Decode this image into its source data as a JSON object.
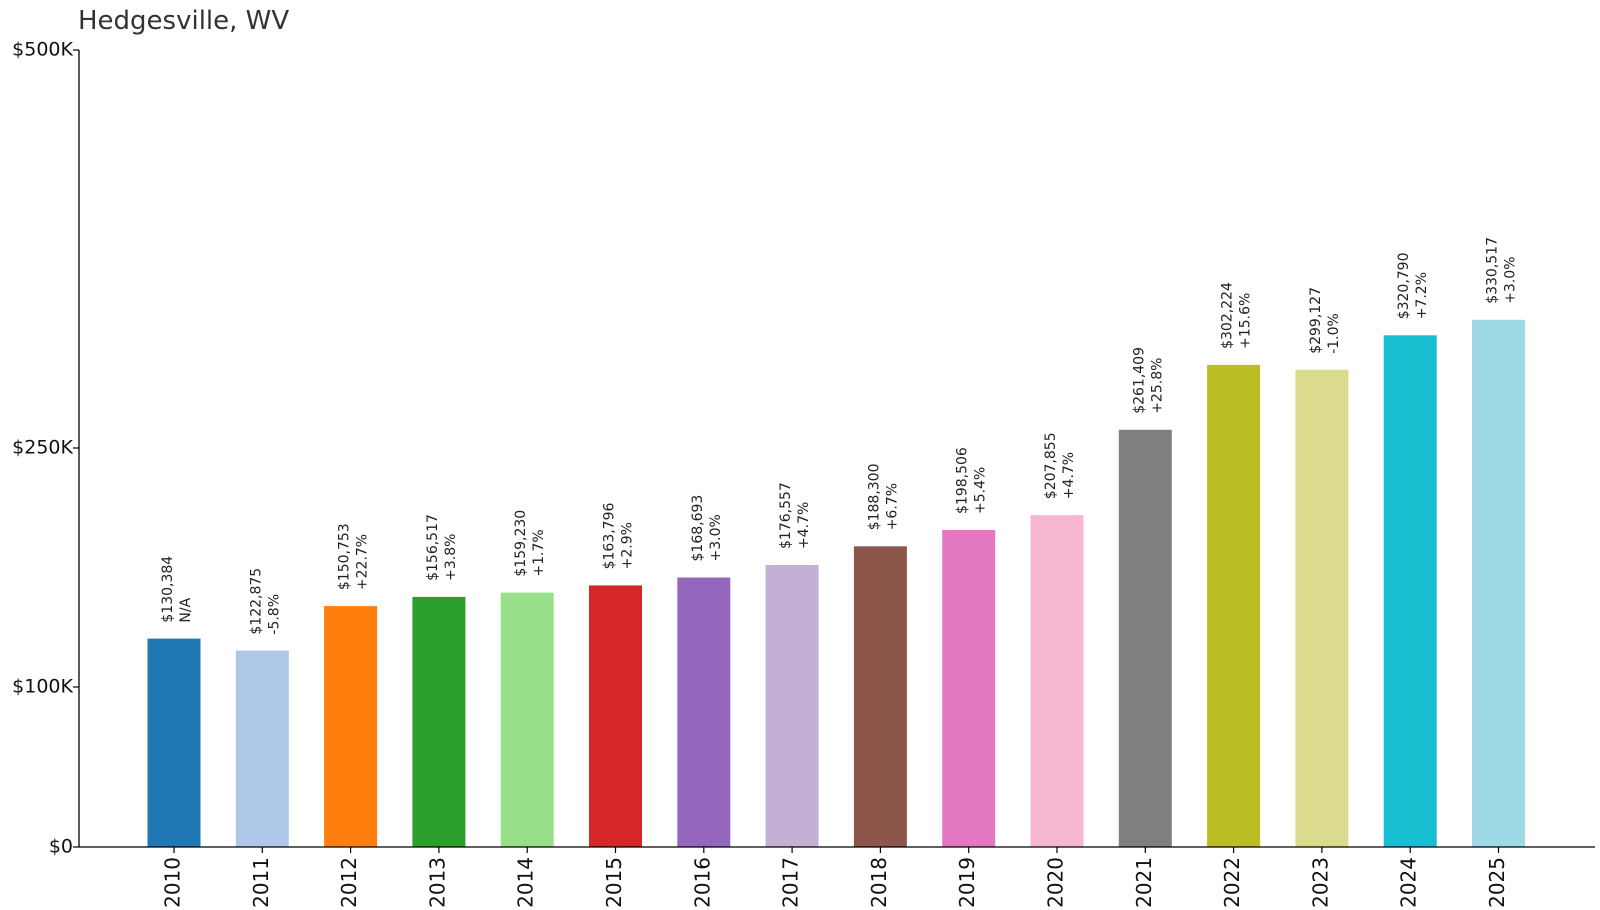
{
  "chart_data": {
    "type": "bar",
    "title": "Hedgesville, WV",
    "xlabel": "",
    "ylabel": "",
    "categories": [
      "2010",
      "2011",
      "2012",
      "2013",
      "2014",
      "2015",
      "2016",
      "2017",
      "2018",
      "2019",
      "2020",
      "2021",
      "2022",
      "2023",
      "2024",
      "2025"
    ],
    "values": [
      130384,
      122875,
      150753,
      156517,
      159230,
      163796,
      168693,
      176557,
      188300,
      198506,
      207855,
      261409,
      302224,
      299127,
      320790,
      330517
    ],
    "value_labels": [
      "$130,384",
      "$122,875",
      "$150,753",
      "$156,517",
      "$159,230",
      "$163,796",
      "$168,693",
      "$176,557",
      "$188,300",
      "$198,506",
      "$207,855",
      "$261,409",
      "$302,224",
      "$299,127",
      "$320,790",
      "$330,517"
    ],
    "change_labels": [
      "N/A",
      "-5.8%",
      "+22.7%",
      "+3.8%",
      "+1.7%",
      "+2.9%",
      "+3.0%",
      "+4.7%",
      "+6.7%",
      "+5.4%",
      "+4.7%",
      "+25.8%",
      "+15.6%",
      "-1.0%",
      "+7.2%",
      "+3.0%"
    ],
    "colors": [
      "#1f77b4",
      "#aec7e8",
      "#ff7f0e",
      "#2ca02c",
      "#98df8a",
      "#d62728",
      "#9467bd",
      "#c5b0d5",
      "#8c564b",
      "#e377c2",
      "#f7b6d2",
      "#7f7f7f",
      "#bcbd22",
      "#dbdb8d",
      "#17becf",
      "#9edae5"
    ],
    "ylim": [
      0,
      500000
    ],
    "yticks": [
      0,
      100000,
      250000,
      500000
    ],
    "ytick_labels": [
      "$0",
      "$100K",
      "$250K",
      "$500K"
    ],
    "grid": false,
    "legend": "none"
  }
}
